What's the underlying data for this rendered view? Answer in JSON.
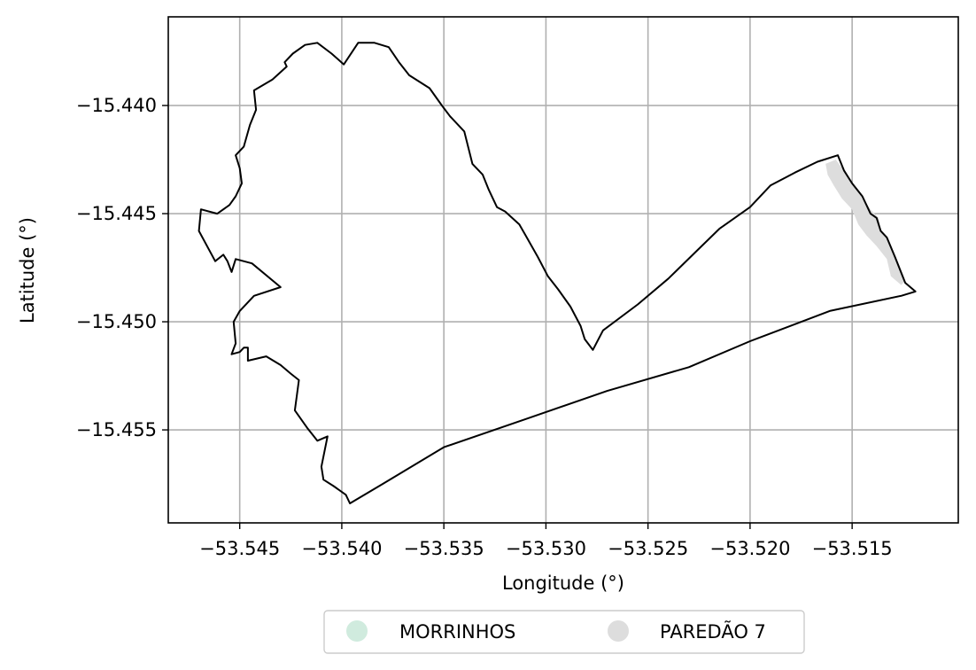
{
  "chart_data": {
    "type": "map",
    "title": "",
    "xlabel": "Longitude (°)",
    "ylabel": "Latitude (°)",
    "xlim": [
      -53.5485,
      -53.5098
    ],
    "ylim": [
      -15.4593,
      -15.4359
    ],
    "grid": true,
    "x_ticks": [
      {
        "value": -53.545,
        "label": "−53.545"
      },
      {
        "value": -53.54,
        "label": "−53.540"
      },
      {
        "value": -53.535,
        "label": "−53.535"
      },
      {
        "value": -53.53,
        "label": "−53.530"
      },
      {
        "value": -53.525,
        "label": "−53.525"
      },
      {
        "value": -53.52,
        "label": "−53.520"
      },
      {
        "value": -53.515,
        "label": "−53.515"
      }
    ],
    "y_ticks": [
      {
        "value": -15.44,
        "label": "−15.440"
      },
      {
        "value": -15.445,
        "label": "−15.445"
      },
      {
        "value": -15.45,
        "label": "−15.450"
      },
      {
        "value": -15.455,
        "label": "−15.455"
      }
    ],
    "legend": {
      "placement": "bottom-center",
      "entries": [
        {
          "label": "MORRINHOS",
          "color": "#d0ebde"
        },
        {
          "label": "PAREDÃO 7",
          "color": "#dddddd"
        }
      ]
    },
    "layers": {
      "boundary": {
        "stroke": "#000000",
        "coords": [
          [
            -53.5396,
            -15.4584
          ],
          [
            -53.5398,
            -15.458
          ],
          [
            -53.5404,
            -15.4576
          ],
          [
            -53.5409,
            -15.4573
          ],
          [
            -53.541,
            -15.4567
          ],
          [
            -53.5407,
            -15.4553
          ],
          [
            -53.5412,
            -15.4555
          ],
          [
            -53.5417,
            -15.4549
          ],
          [
            -53.5423,
            -15.4541
          ],
          [
            -53.5421,
            -15.4527
          ],
          [
            -53.5425,
            -15.4524
          ],
          [
            -53.543,
            -15.452
          ],
          [
            -53.5437,
            -15.4516
          ],
          [
            -53.5446,
            -15.4518
          ],
          [
            -53.5446,
            -15.4512
          ],
          [
            -53.5448,
            -15.4512
          ],
          [
            -53.545,
            -15.4514
          ],
          [
            -53.5454,
            -15.4515
          ],
          [
            -53.5452,
            -15.451
          ],
          [
            -53.5453,
            -15.45
          ],
          [
            -53.545,
            -15.4495
          ],
          [
            -53.5443,
            -15.4488
          ],
          [
            -53.543,
            -15.4484
          ],
          [
            -53.5444,
            -15.4473
          ],
          [
            -53.5452,
            -15.4471
          ],
          [
            -53.5454,
            -15.4477
          ],
          [
            -53.5456,
            -15.4472
          ],
          [
            -53.5458,
            -15.4469
          ],
          [
            -53.5462,
            -15.4472
          ],
          [
            -53.547,
            -15.4458
          ],
          [
            -53.5469,
            -15.4448
          ],
          [
            -53.5461,
            -15.445
          ],
          [
            -53.5455,
            -15.4446
          ],
          [
            -53.5452,
            -15.4442
          ],
          [
            -53.5449,
            -15.4436
          ],
          [
            -53.545,
            -15.4429
          ],
          [
            -53.5452,
            -15.4423
          ],
          [
            -53.5448,
            -15.4419
          ],
          [
            -53.5445,
            -15.4409
          ],
          [
            -53.5442,
            -15.4402
          ],
          [
            -53.5443,
            -15.4393
          ],
          [
            -53.5434,
            -15.4388
          ],
          [
            -53.5427,
            -15.4382
          ],
          [
            -53.5428,
            -15.438
          ],
          [
            -53.5424,
            -15.4376
          ],
          [
            -53.5418,
            -15.4372
          ],
          [
            -53.5412,
            -15.4371
          ],
          [
            -53.5405,
            -15.4376
          ],
          [
            -53.5399,
            -15.4381
          ],
          [
            -53.5392,
            -15.4371
          ],
          [
            -53.5384,
            -15.4371
          ],
          [
            -53.5377,
            -15.4373
          ],
          [
            -53.5372,
            -15.438
          ],
          [
            -53.5367,
            -15.4386
          ],
          [
            -53.5357,
            -15.4392
          ],
          [
            -53.5351,
            -15.44
          ],
          [
            -53.5347,
            -15.4405
          ],
          [
            -53.534,
            -15.4412
          ],
          [
            -53.5336,
            -15.4427
          ],
          [
            -53.5331,
            -15.4432
          ],
          [
            -53.5328,
            -15.4439
          ],
          [
            -53.5324,
            -15.4447
          ],
          [
            -53.532,
            -15.4449
          ],
          [
            -53.5313,
            -15.4455
          ],
          [
            -53.531,
            -15.446
          ],
          [
            -53.5304,
            -15.447
          ],
          [
            -53.5299,
            -15.4479
          ],
          [
            -53.5294,
            -15.4485
          ],
          [
            -53.5288,
            -15.4493
          ],
          [
            -53.5283,
            -15.4502
          ],
          [
            -53.5281,
            -15.4508
          ],
          [
            -53.5277,
            -15.4513
          ],
          [
            -53.5272,
            -15.4504
          ],
          [
            -53.5255,
            -15.4492
          ],
          [
            -53.524,
            -15.448
          ],
          [
            -53.5227,
            -15.4468
          ],
          [
            -53.5215,
            -15.4457
          ],
          [
            -53.52,
            -15.4447
          ],
          [
            -53.519,
            -15.4437
          ],
          [
            -53.5178,
            -15.4431
          ],
          [
            -53.5167,
            -15.4426
          ],
          [
            -53.5157,
            -15.4423
          ],
          [
            -53.5154,
            -15.443
          ],
          [
            -53.515,
            -15.4436
          ],
          [
            -53.5145,
            -15.4442
          ],
          [
            -53.5141,
            -15.445
          ],
          [
            -53.5138,
            -15.4452
          ],
          [
            -53.5136,
            -15.4458
          ],
          [
            -53.5133,
            -15.4461
          ],
          [
            -53.5129,
            -15.447
          ],
          [
            -53.5124,
            -15.4482
          ],
          [
            -53.5119,
            -15.4486
          ],
          [
            -53.5126,
            -15.4488
          ],
          [
            -53.5161,
            -15.4495
          ],
          [
            -53.52,
            -15.4509
          ],
          [
            -53.523,
            -15.4521
          ],
          [
            -53.527,
            -15.4532
          ],
          [
            -53.531,
            -15.4545
          ],
          [
            -53.535,
            -15.4558
          ],
          [
            -53.538,
            -15.4575
          ],
          [
            -53.5396,
            -15.4584
          ]
        ]
      },
      "paredao_7": {
        "fill": "#dddddd",
        "coords": [
          [
            -53.5163,
            -15.4427
          ],
          [
            -53.5158,
            -15.4425
          ],
          [
            -53.5154,
            -15.443
          ],
          [
            -53.515,
            -15.4436
          ],
          [
            -53.5146,
            -15.4441
          ],
          [
            -53.5141,
            -15.4448
          ],
          [
            -53.5137,
            -15.4452
          ],
          [
            -53.5136,
            -15.4458
          ],
          [
            -53.5133,
            -15.4461
          ],
          [
            -53.5129,
            -15.447
          ],
          [
            -53.5124,
            -15.4481
          ],
          [
            -53.5126,
            -15.4483
          ],
          [
            -53.5131,
            -15.4479
          ],
          [
            -53.5133,
            -15.4471
          ],
          [
            -53.5138,
            -15.4465
          ],
          [
            -53.5143,
            -15.446
          ],
          [
            -53.5147,
            -15.4455
          ],
          [
            -53.515,
            -15.4448
          ],
          [
            -53.5155,
            -15.4443
          ],
          [
            -53.5159,
            -15.4437
          ],
          [
            -53.5162,
            -15.4432
          ]
        ]
      }
    }
  }
}
